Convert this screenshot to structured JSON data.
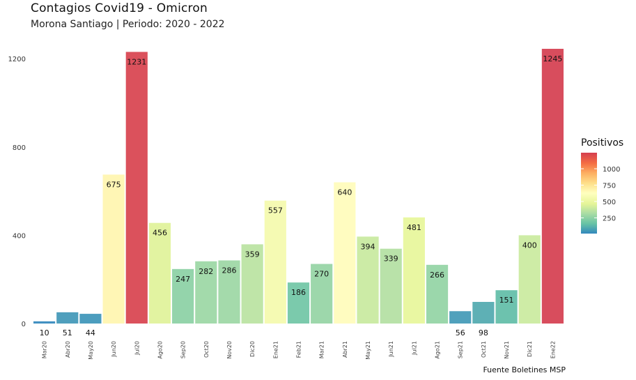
{
  "chart_data": {
    "type": "bar",
    "title": "Contagios Covid19 - Omicron",
    "subtitle": "Morona Santiago | Periodo: 2020 - 2022",
    "caption": "Fuente Boletines MSP",
    "categories": [
      "Mar20",
      "Abr20",
      "May20",
      "Jun20",
      "Jul20",
      "Ago20",
      "Sep20",
      "Oct20",
      "Nov20",
      "Dic20",
      "Ene21",
      "Feb21",
      "Mar21",
      "Abr21",
      "May21",
      "Jun21",
      "Jul21",
      "Ago21",
      "Sep21",
      "Oct21",
      "Nov21",
      "Dic21",
      "Ene22"
    ],
    "values": [
      10,
      51,
      44,
      675,
      1231,
      456,
      247,
      282,
      286,
      359,
      557,
      186,
      270,
      640,
      394,
      339,
      481,
      266,
      56,
      98,
      151,
      400,
      1245
    ],
    "ylim": [
      0,
      1245
    ],
    "yticks": [
      0,
      400,
      800,
      1200
    ],
    "legend": {
      "title": "Positivos",
      "ticks": [
        250,
        500,
        750,
        1000
      ],
      "placement": "right",
      "colors": [
        "#3288bd",
        "#66c2a5",
        "#abdda4",
        "#e6f598",
        "#ffffbf",
        "#fee08b",
        "#fdae61",
        "#f46d43",
        "#d53e4f"
      ]
    },
    "grid": false
  }
}
